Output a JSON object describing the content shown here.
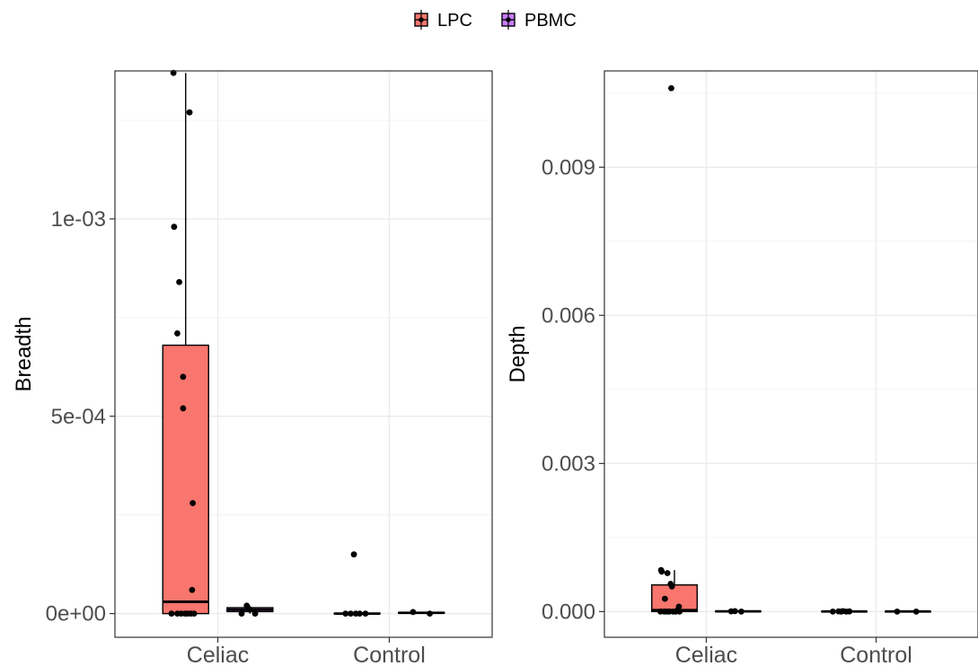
{
  "legend": {
    "entries": [
      {
        "label": "LPC",
        "color": "#F8766D"
      },
      {
        "label": "PBMC",
        "color": "#C77CFF"
      }
    ]
  },
  "chart_data": [
    {
      "type": "boxplot",
      "ylabel": "Breadth",
      "xlabel": "",
      "categories": [
        "Celiac",
        "Control"
      ],
      "groups": [
        "LPC",
        "PBMC"
      ],
      "ylim": [
        -6e-05,
        0.001375
      ],
      "yticks": [
        0,
        0.0005,
        0.001
      ],
      "ytick_labels": [
        "0e+00",
        "5e-04",
        "1e-03"
      ],
      "grid": true,
      "boxes": [
        {
          "category": "Celiac",
          "group": "LPC",
          "min": 0,
          "q1": 0,
          "median": 3e-05,
          "q3": 0.00068,
          "max": 0.00137
        },
        {
          "category": "Celiac",
          "group": "PBMC",
          "min": 0,
          "q1": 5e-06,
          "median": 1e-05,
          "q3": 1.5e-05,
          "max": 2e-05
        },
        {
          "category": "Control",
          "group": "LPC",
          "min": 0,
          "q1": 0,
          "median": 0,
          "q3": 1e-06,
          "max": 2e-06
        },
        {
          "category": "Control",
          "group": "PBMC",
          "min": 0,
          "q1": 1e-06,
          "median": 2e-06,
          "q3": 3e-06,
          "max": 4e-06
        }
      ],
      "points": [
        {
          "category": "Celiac",
          "group": "LPC",
          "offset": -0.19,
          "y": 0.00137
        },
        {
          "category": "Celiac",
          "group": "LPC",
          "offset": 0.06,
          "y": 0.00127
        },
        {
          "category": "Celiac",
          "group": "LPC",
          "offset": -0.18,
          "y": 0.00098
        },
        {
          "category": "Celiac",
          "group": "LPC",
          "offset": -0.1,
          "y": 0.00084
        },
        {
          "category": "Celiac",
          "group": "LPC",
          "offset": -0.13,
          "y": 0.00071
        },
        {
          "category": "Celiac",
          "group": "LPC",
          "offset": -0.04,
          "y": 0.0006
        },
        {
          "category": "Celiac",
          "group": "LPC",
          "offset": -0.04,
          "y": 0.00052
        },
        {
          "category": "Celiac",
          "group": "LPC",
          "offset": 0.11,
          "y": 0.00028
        },
        {
          "category": "Celiac",
          "group": "LPC",
          "offset": 0.1,
          "y": 6e-05
        },
        {
          "category": "Celiac",
          "group": "LPC",
          "offset": -0.22,
          "y": 0
        },
        {
          "category": "Celiac",
          "group": "LPC",
          "offset": -0.13,
          "y": 0
        },
        {
          "category": "Celiac",
          "group": "LPC",
          "offset": -0.07,
          "y": 0
        },
        {
          "category": "Celiac",
          "group": "LPC",
          "offset": -0.01,
          "y": 0
        },
        {
          "category": "Celiac",
          "group": "LPC",
          "offset": 0.03,
          "y": 0
        },
        {
          "category": "Celiac",
          "group": "LPC",
          "offset": 0.08,
          "y": 0
        },
        {
          "category": "Celiac",
          "group": "LPC",
          "offset": 0.13,
          "y": 0
        },
        {
          "category": "Celiac",
          "group": "PBMC",
          "offset": -0.05,
          "y": 2e-05
        },
        {
          "category": "Celiac",
          "group": "PBMC",
          "offset": 0.0,
          "y": 1e-05
        },
        {
          "category": "Celiac",
          "group": "PBMC",
          "offset": -0.13,
          "y": 0
        },
        {
          "category": "Celiac",
          "group": "PBMC",
          "offset": 0.08,
          "y": 0
        },
        {
          "category": "Control",
          "group": "LPC",
          "offset": -0.05,
          "y": 0.00015
        },
        {
          "category": "Control",
          "group": "LPC",
          "offset": -0.18,
          "y": 0
        },
        {
          "category": "Control",
          "group": "LPC",
          "offset": -0.1,
          "y": 0
        },
        {
          "category": "Control",
          "group": "LPC",
          "offset": -0.02,
          "y": 0
        },
        {
          "category": "Control",
          "group": "LPC",
          "offset": 0.04,
          "y": 0
        },
        {
          "category": "Control",
          "group": "LPC",
          "offset": 0.13,
          "y": 0
        },
        {
          "category": "Control",
          "group": "PBMC",
          "offset": -0.13,
          "y": 4e-06
        },
        {
          "category": "Control",
          "group": "PBMC",
          "offset": 0.13,
          "y": 0
        }
      ]
    },
    {
      "type": "boxplot",
      "ylabel": "Depth",
      "xlabel": "",
      "categories": [
        "Celiac",
        "Control"
      ],
      "groups": [
        "LPC",
        "PBMC"
      ],
      "ylim": [
        -0.00052,
        0.01095
      ],
      "yticks": [
        0,
        0.003,
        0.006,
        0.009
      ],
      "ytick_labels": [
        "0.000",
        "0.003",
        "0.006",
        "0.009"
      ],
      "grid": true,
      "boxes": [
        {
          "category": "Celiac",
          "group": "LPC",
          "min": 0,
          "q1": 0,
          "median": 3e-05,
          "q3": 0.00054,
          "max": 0.00084
        },
        {
          "category": "Celiac",
          "group": "PBMC",
          "min": 0,
          "q1": 2e-06,
          "median": 5e-06,
          "q3": 8e-06,
          "max": 1e-05
        },
        {
          "category": "Control",
          "group": "LPC",
          "min": 0,
          "q1": 1e-06,
          "median": 3e-06,
          "q3": 6e-06,
          "max": 1e-05
        },
        {
          "category": "Control",
          "group": "PBMC",
          "min": 0,
          "q1": 1e-06,
          "median": 2e-06,
          "q3": 3e-06,
          "max": 5e-06
        }
      ],
      "points": [
        {
          "category": "Celiac",
          "group": "LPC",
          "offset": -0.05,
          "y": 0.0106
        },
        {
          "category": "Celiac",
          "group": "LPC",
          "offset": -0.21,
          "y": 0.00084
        },
        {
          "category": "Celiac",
          "group": "LPC",
          "offset": -0.2,
          "y": 0.00081
        },
        {
          "category": "Celiac",
          "group": "LPC",
          "offset": -0.11,
          "y": 0.00078
        },
        {
          "category": "Celiac",
          "group": "LPC",
          "offset": -0.06,
          "y": 0.00056
        },
        {
          "category": "Celiac",
          "group": "LPC",
          "offset": -0.04,
          "y": 0.00051
        },
        {
          "category": "Celiac",
          "group": "LPC",
          "offset": -0.15,
          "y": 0.00026
        },
        {
          "category": "Celiac",
          "group": "LPC",
          "offset": 0.07,
          "y": 0.0001
        },
        {
          "category": "Celiac",
          "group": "LPC",
          "offset": 0.05,
          "y": 3e-05
        },
        {
          "category": "Celiac",
          "group": "LPC",
          "offset": -0.22,
          "y": 0
        },
        {
          "category": "Celiac",
          "group": "LPC",
          "offset": -0.16,
          "y": 0
        },
        {
          "category": "Celiac",
          "group": "LPC",
          "offset": -0.12,
          "y": 0
        },
        {
          "category": "Celiac",
          "group": "LPC",
          "offset": -0.08,
          "y": 0
        },
        {
          "category": "Celiac",
          "group": "LPC",
          "offset": -0.02,
          "y": 0
        },
        {
          "category": "Celiac",
          "group": "LPC",
          "offset": 0.02,
          "y": 0
        },
        {
          "category": "Celiac",
          "group": "LPC",
          "offset": 0.08,
          "y": 0
        },
        {
          "category": "Celiac",
          "group": "PBMC",
          "offset": -0.11,
          "y": 5e-06
        },
        {
          "category": "Celiac",
          "group": "PBMC",
          "offset": -0.05,
          "y": 1e-05
        },
        {
          "category": "Celiac",
          "group": "PBMC",
          "offset": 0.05,
          "y": 0
        },
        {
          "category": "Control",
          "group": "LPC",
          "offset": -0.18,
          "y": 0
        },
        {
          "category": "Control",
          "group": "LPC",
          "offset": -0.09,
          "y": 5e-06
        },
        {
          "category": "Control",
          "group": "LPC",
          "offset": -0.05,
          "y": 0
        },
        {
          "category": "Control",
          "group": "LPC",
          "offset": -0.02,
          "y": 1e-05
        },
        {
          "category": "Control",
          "group": "LPC",
          "offset": 0.03,
          "y": 0
        },
        {
          "category": "Control",
          "group": "LPC",
          "offset": 0.08,
          "y": 4e-06
        },
        {
          "category": "Control",
          "group": "PBMC",
          "offset": -0.17,
          "y": 0
        },
        {
          "category": "Control",
          "group": "PBMC",
          "offset": 0.13,
          "y": 0
        }
      ]
    }
  ]
}
